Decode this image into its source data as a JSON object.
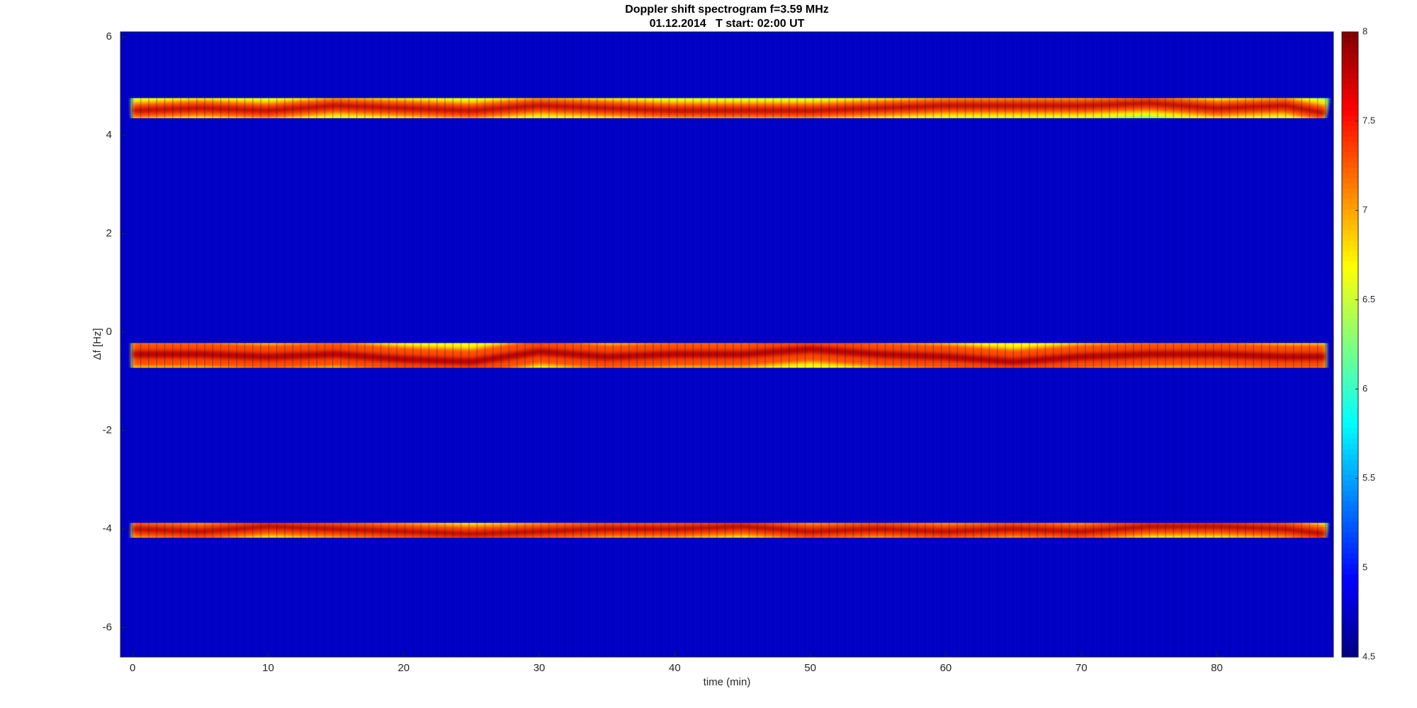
{
  "chart_data": {
    "type": "spectrogram",
    "title": "Doppler shift spectrogram f=3.59 MHz",
    "subtitle": "01.12.2014   T start: 02:00 UT",
    "xlabel": "time (min)",
    "ylabel": "Δf [Hz]",
    "xlim": [
      -0.9,
      88.6
    ],
    "xticks": [
      0,
      10,
      20,
      30,
      40,
      50,
      60,
      70,
      80
    ],
    "ylim": [
      -6.6,
      6.1
    ],
    "yticks": [
      -6,
      -4,
      -2,
      0,
      2,
      4,
      6
    ],
    "colormap": "jet",
    "clim": [
      4.5,
      8
    ],
    "cticks": [
      4.5,
      5,
      5.5,
      6,
      6.5,
      7,
      7.5,
      8
    ],
    "x": [
      0,
      5,
      10,
      15,
      20,
      25,
      30,
      35,
      40,
      45,
      50,
      55,
      60,
      65,
      70,
      75,
      80,
      85,
      88
    ],
    "series": [
      {
        "spread": 0.55,
        "values": [
          4.5,
          4.55,
          4.5,
          4.6,
          4.55,
          4.5,
          4.6,
          4.55,
          4.5,
          4.5,
          4.5,
          4.55,
          4.6,
          4.6,
          4.6,
          4.65,
          4.55,
          4.6,
          4.45
        ]
      },
      {
        "spread": 0.9,
        "values": [
          -0.45,
          -0.45,
          -0.5,
          -0.45,
          -0.55,
          -0.6,
          -0.4,
          -0.5,
          -0.45,
          -0.45,
          -0.35,
          -0.45,
          -0.5,
          -0.6,
          -0.5,
          -0.45,
          -0.45,
          -0.5,
          -0.5
        ]
      },
      {
        "spread": 0.6,
        "values": [
          -4.0,
          -4.05,
          -3.95,
          -4.0,
          -4.05,
          -4.1,
          -4.05,
          -4.0,
          -4.0,
          -3.95,
          -4.05,
          -4.0,
          -4.05,
          -4.0,
          -4.05,
          -3.95,
          -3.95,
          -4.0,
          -4.1
        ]
      }
    ]
  }
}
